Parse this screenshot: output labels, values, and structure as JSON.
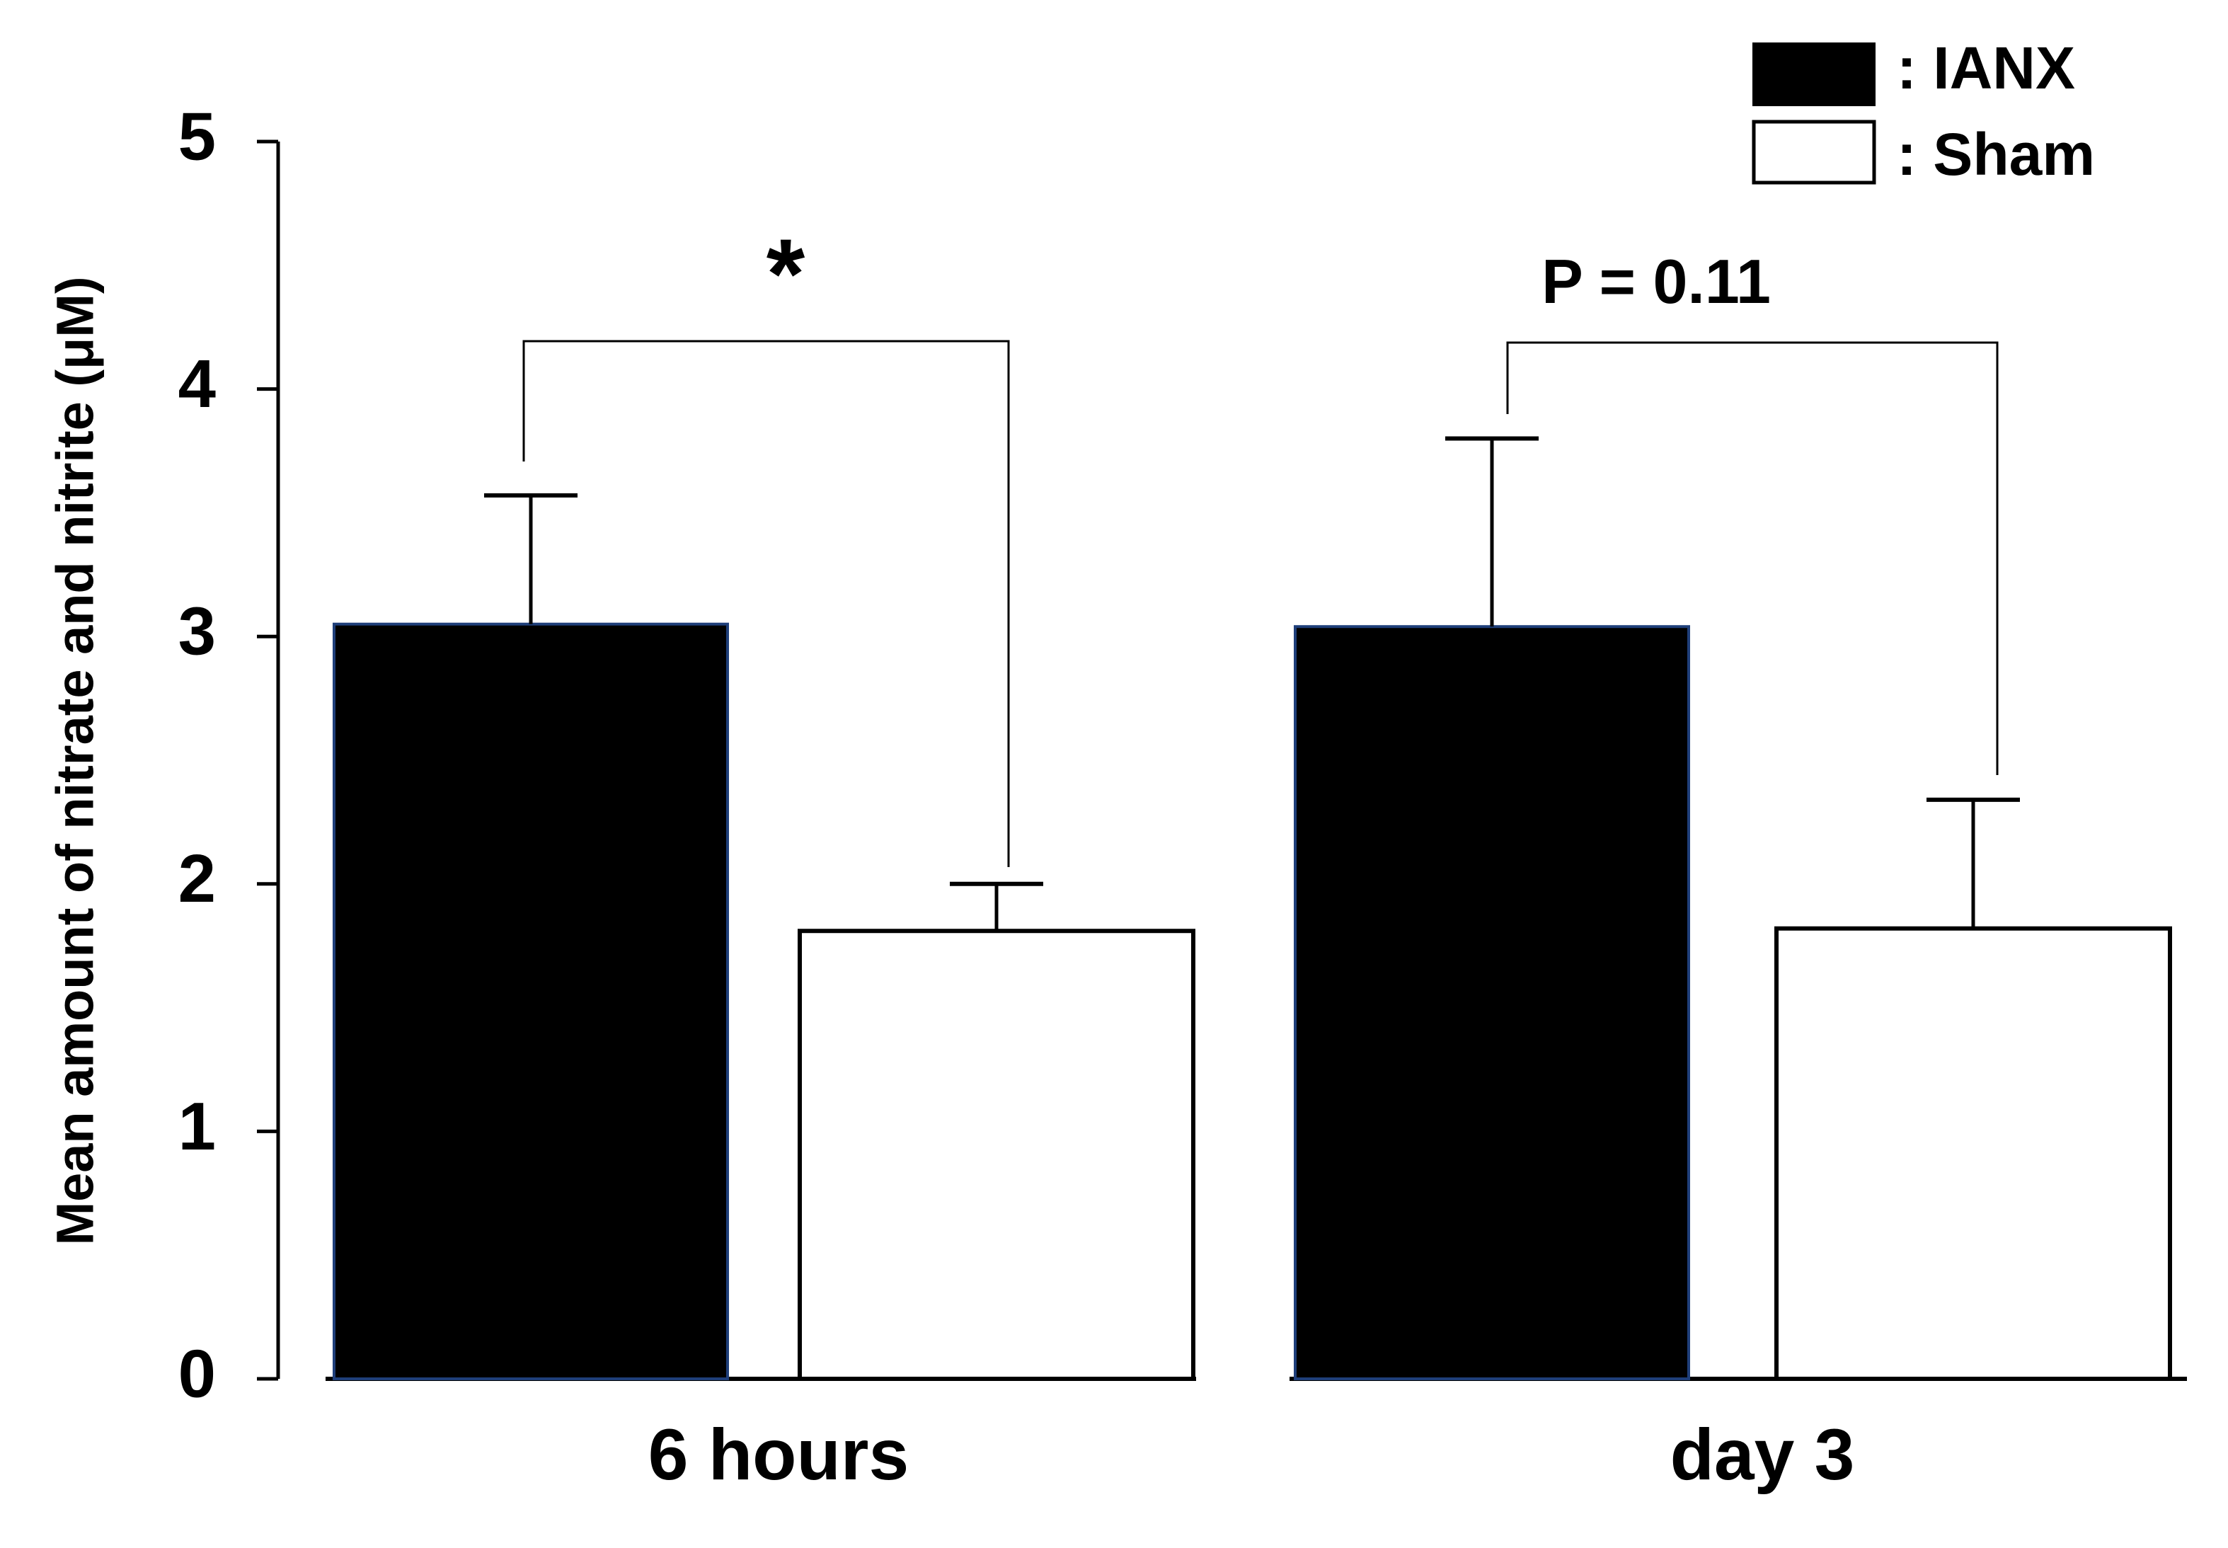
{
  "chart_data": {
    "type": "bar",
    "ylabel": "Mean amount of nitrate and nitrite (μM)",
    "ylim": [
      0,
      5
    ],
    "yticks": [
      "0",
      "1",
      "2",
      "3",
      "4",
      "5"
    ],
    "categories": [
      "6 hours",
      "day 3"
    ],
    "series": [
      {
        "name": "IANX",
        "legend_label": ": IANX",
        "fill": "#000000",
        "values": [
          3.05,
          3.04
        ],
        "error_upper": [
          3.57,
          3.8
        ]
      },
      {
        "name": "Sham",
        "legend_label": ": Sham",
        "fill": "#ffffff",
        "values": [
          1.81,
          1.82
        ],
        "error_upper": [
          2.0,
          2.34
        ]
      }
    ],
    "annotations": [
      {
        "group": "6 hours",
        "label": "*"
      },
      {
        "group": "day 3",
        "label": "P = 0.11"
      }
    ],
    "grid": false,
    "legend": "top-right"
  }
}
